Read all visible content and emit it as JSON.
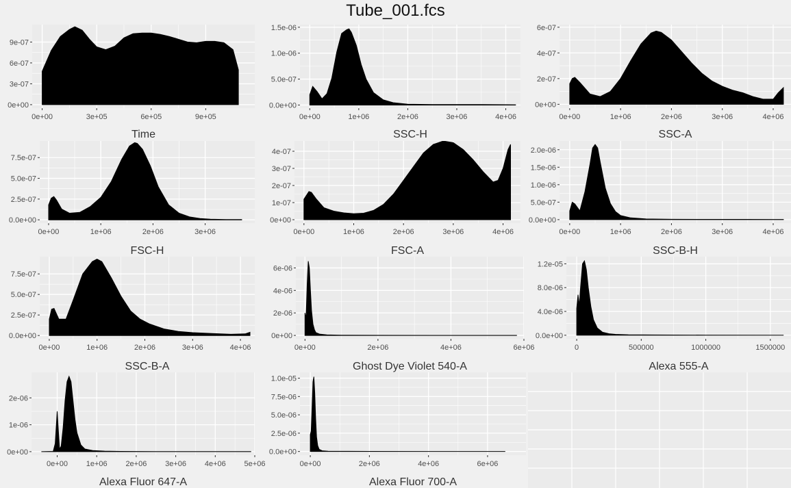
{
  "page": {
    "title": "Tube_001.fcs"
  },
  "colors": {
    "background": "#f0f0f0",
    "panel": "#ebebeb",
    "gridline": "#ffffff",
    "fill": "#000000",
    "text": "#4d4d4d"
  },
  "chart_data": [
    {
      "type": "area",
      "xlabel": "Time",
      "xticks": [
        0,
        300000,
        600000,
        900000
      ],
      "xtick_labels": [
        "0e+00",
        "3e+05",
        "6e+05",
        "9e+05"
      ],
      "yticks": [
        0,
        3e-07,
        6e-07,
        9e-07
      ],
      "ytick_labels": [
        "0e+00",
        "3e-07",
        "6e-07",
        "9e-07"
      ],
      "xlim": [
        -55000,
        1170000
      ],
      "ylim": [
        -5e-08,
        1.15e-06
      ],
      "x": [
        0,
        50000,
        100000,
        150000,
        180000,
        220000,
        260000,
        300000,
        350000,
        400000,
        450000,
        500000,
        550000,
        600000,
        650000,
        700000,
        750000,
        800000,
        850000,
        900000,
        950000,
        1000000,
        1050000,
        1080000
      ],
      "y": [
        4.8e-07,
        7.8e-07,
        9.8e-07,
        1.08e-06,
        1.12e-06,
        1.07e-06,
        9.4e-07,
        8.3e-07,
        7.9e-07,
        8.4e-07,
        9.6e-07,
        1.02e-06,
        1.03e-06,
        1.03e-06,
        1.01e-06,
        9.8e-07,
        9.4e-07,
        9e-07,
        8.9e-07,
        9.1e-07,
        9.1e-07,
        8.9e-07,
        7.9e-07,
        5e-07
      ]
    },
    {
      "type": "area",
      "xlabel": "SSC-H",
      "xticks": [
        0,
        1000000,
        2000000,
        3000000,
        4000000
      ],
      "xtick_labels": [
        "0e+00",
        "1e+06",
        "2e+06",
        "3e+06",
        "4e+06"
      ],
      "yticks": [
        0,
        5e-07,
        1e-06,
        1.5e-06
      ],
      "ytick_labels": [
        "0.0e+00",
        "5.0e-07",
        "1.0e-06",
        "1.5e-06"
      ],
      "xlim": [
        -200000,
        4300000
      ],
      "ylim": [
        -6e-08,
        1.55e-06
      ],
      "x": [
        0,
        60000,
        150000,
        250000,
        350000,
        450000,
        550000,
        650000,
        750000,
        800000,
        850000,
        950000,
        1050000,
        1150000,
        1300000,
        1500000,
        1700000,
        2000000,
        2500000,
        3000000,
        3500000,
        4000000,
        4200000
      ],
      "y": [
        2e-07,
        3.6e-07,
        2.6e-07,
        1.2e-07,
        2.2e-07,
        5.2e-07,
        1.02e-06,
        1.38e-06,
        1.45e-06,
        1.47e-06,
        1.4e-06,
        1.15e-06,
        7.8e-07,
        5e-07,
        2.4e-07,
        1e-07,
        4.5e-08,
        1.5e-08,
        1e-08,
        9e-09,
        8e-09,
        6e-09,
        5e-09
      ]
    },
    {
      "type": "area",
      "xlabel": "SSC-A",
      "xticks": [
        0,
        1000000,
        2000000,
        3000000,
        4000000
      ],
      "xtick_labels": [
        "0e+00",
        "1e+06",
        "2e+06",
        "3e+06",
        "4e+06"
      ],
      "yticks": [
        0,
        2e-07,
        4e-07,
        6e-07
      ],
      "ytick_labels": [
        "0e+00",
        "2e-07",
        "4e-07",
        "6e-07"
      ],
      "xlim": [
        -200000,
        4350000
      ],
      "ylim": [
        -3e-08,
        6.2e-07
      ],
      "x": [
        0,
        50000,
        100000,
        200000,
        400000,
        600000,
        800000,
        1000000,
        1200000,
        1400000,
        1600000,
        1700000,
        1800000,
        2000000,
        2200000,
        2400000,
        2600000,
        2800000,
        3000000,
        3200000,
        3400000,
        3600000,
        3800000,
        4000000,
        4100000,
        4200000
      ],
      "y": [
        1.6e-07,
        2e-07,
        2.1e-07,
        1.7e-07,
        8e-08,
        6e-08,
        1e-07,
        2e-07,
        3.4e-07,
        4.7e-07,
        5.55e-07,
        5.7e-07,
        5.6e-07,
        5e-07,
        4.1e-07,
        3.2e-07,
        2.4e-07,
        1.8e-07,
        1.4e-07,
        1.1e-07,
        9e-08,
        6e-08,
        4e-08,
        4e-08,
        9e-08,
        1.3e-07
      ]
    },
    {
      "type": "area",
      "xlabel": "FSC-H",
      "xticks": [
        0,
        1000000,
        2000000,
        3000000
      ],
      "xtick_labels": [
        "0e+00",
        "1e+06",
        "2e+06",
        "3e+06"
      ],
      "yticks": [
        0,
        2.5e-07,
        5e-07,
        7.5e-07
      ],
      "ytick_labels": [
        "0.0e+00",
        "2.5e-07",
        "5.0e-07",
        "7.5e-07"
      ],
      "xlim": [
        -170000,
        3950000
      ],
      "ylim": [
        -4e-08,
        9.5e-07
      ],
      "x": [
        0,
        50000,
        100000,
        150000,
        250000,
        400000,
        600000,
        800000,
        1000000,
        1200000,
        1400000,
        1550000,
        1650000,
        1700000,
        1800000,
        1950000,
        2100000,
        2300000,
        2500000,
        2700000,
        2900000,
        3100000,
        3400000,
        3700000
      ],
      "y": [
        1.8e-07,
        2.6e-07,
        2.8e-07,
        2.4e-07,
        1.3e-07,
        8e-08,
        9e-08,
        1.6e-07,
        2.7e-07,
        4.6e-07,
        7.3e-07,
        8.9e-07,
        9.3e-07,
        9.2e-07,
        8.5e-07,
        6.5e-07,
        4e-07,
        1.8e-07,
        8e-08,
        3.5e-08,
        1.5e-08,
        8e-09,
        4e-09,
        3e-09
      ]
    },
    {
      "type": "area",
      "xlabel": "FSC-A",
      "xticks": [
        0,
        1000000,
        2000000,
        3000000,
        4000000
      ],
      "xtick_labels": [
        "0e+00",
        "1e+06",
        "2e+06",
        "3e+06",
        "4e+06"
      ],
      "yticks": [
        0,
        1e-07,
        2e-07,
        3e-07,
        4e-07
      ],
      "ytick_labels": [
        "0e+00",
        "1e-07",
        "2e-07",
        "3e-07",
        "4e-07"
      ],
      "xlim": [
        -190000,
        4350000
      ],
      "ylim": [
        -2e-08,
        4.6e-07
      ],
      "x": [
        0,
        100000,
        150000,
        250000,
        400000,
        600000,
        800000,
        1000000,
        1200000,
        1400000,
        1600000,
        1800000,
        2000000,
        2200000,
        2400000,
        2600000,
        2800000,
        3000000,
        3200000,
        3400000,
        3600000,
        3800000,
        3900000,
        4000000,
        4100000,
        4150000
      ],
      "y": [
        1.2e-07,
        1.65e-07,
        1.6e-07,
        1.2e-07,
        7e-08,
        5e-08,
        4e-08,
        3.5e-08,
        3.8e-08,
        5.5e-08,
        9e-08,
        1.5e-07,
        2.3e-07,
        3.1e-07,
        3.9e-07,
        4.4e-07,
        4.6e-07,
        4.5e-07,
        4.1e-07,
        3.5e-07,
        2.8e-07,
        2.2e-07,
        2.3e-07,
        3e-07,
        4.1e-07,
        4.4e-07
      ]
    },
    {
      "type": "area",
      "xlabel": "SSC-B-H",
      "xticks": [
        0,
        1000000,
        2000000,
        3000000,
        4000000
      ],
      "xtick_labels": [
        "0e+00",
        "1e+06",
        "2e+06",
        "3e+06",
        "4e+06"
      ],
      "yticks": [
        0,
        5e-07,
        1e-06,
        1.5e-06,
        2e-06
      ],
      "ytick_labels": [
        "0.0e+00",
        "5.0e-07",
        "1.0e-06",
        "1.5e-06",
        "2.0e-06"
      ],
      "xlim": [
        -200000,
        4350000
      ],
      "ylim": [
        -1e-07,
        2.25e-06
      ],
      "x": [
        0,
        50000,
        100000,
        200000,
        300000,
        400000,
        450000,
        500000,
        550000,
        600000,
        700000,
        800000,
        900000,
        1000000,
        1200000,
        1500000,
        2000000,
        2500000,
        3000000,
        3500000,
        4000000,
        4200000
      ],
      "y": [
        2.5e-07,
        5e-07,
        4.5e-07,
        2.5e-07,
        8e-07,
        1.6e-06,
        2.05e-06,
        2.15e-06,
        2.05e-06,
        1.65e-06,
        9e-07,
        4.6e-07,
        2.3e-07,
        1.2e-07,
        5e-08,
        2e-08,
        1e-08,
        8e-09,
        8e-09,
        7e-09,
        6e-09,
        5e-09
      ]
    },
    {
      "type": "area",
      "xlabel": "SSC-B-A",
      "xticks": [
        0,
        1000000,
        2000000,
        3000000,
        4000000
      ],
      "xtick_labels": [
        "0e+00",
        "1e+06",
        "2e+06",
        "3e+06",
        "4e+06"
      ],
      "yticks": [
        0,
        2.5e-07,
        5e-07,
        7.5e-07
      ],
      "ytick_labels": [
        "0.0e+00",
        "2.5e-07",
        "5.0e-07",
        "7.5e-07"
      ],
      "xlim": [
        -200000,
        4300000
      ],
      "ylim": [
        -4e-08,
        9.6e-07
      ],
      "x": [
        0,
        50000,
        100000,
        200000,
        350000,
        500000,
        700000,
        900000,
        1000000,
        1100000,
        1300000,
        1500000,
        1700000,
        1900000,
        2100000,
        2400000,
        2700000,
        3000000,
        3400000,
        3800000,
        4100000,
        4200000
      ],
      "y": [
        2e-07,
        3.2e-07,
        3.3e-07,
        2e-07,
        2e-07,
        4.3e-07,
        7.5e-07,
        9e-07,
        9.3e-07,
        9e-07,
        7e-07,
        4.8e-07,
        3e-07,
        2e-07,
        1.4e-07,
        8e-08,
        5e-08,
        3.5e-08,
        2.5e-08,
        1.5e-08,
        2e-08,
        4e-08
      ]
    },
    {
      "type": "area",
      "xlabel": "Ghost Dye Violet 540-A",
      "xticks": [
        0,
        2000000,
        4000000,
        6000000
      ],
      "xtick_labels": [
        "0e+00",
        "2e+06",
        "4e+06",
        "6e+06"
      ],
      "yticks": [
        0,
        2e-06,
        4e-06,
        6e-06
      ],
      "ytick_labels": [
        "0e+00",
        "2e-06",
        "4e-06",
        "6e-06"
      ],
      "xlim": [
        -250000,
        6000000
      ],
      "ylim": [
        -3e-07,
        7e-06
      ],
      "x": [
        0,
        30000,
        60000,
        90000,
        120000,
        150000,
        180000,
        220000,
        260000,
        300000,
        400000,
        600000,
        1000000,
        2000000,
        4000000,
        5800000
      ],
      "y": [
        2e-06,
        1.5e-06,
        4.5e-06,
        6.6e-06,
        6e-06,
        4e-06,
        2.2e-06,
        1e-06,
        5e-07,
        2.5e-07,
        1.2e-07,
        5e-08,
        2e-08,
        1e-08,
        5e-09,
        3e-09
      ]
    },
    {
      "type": "area",
      "xlabel": "Alexa 555-A",
      "xticks": [
        0,
        500000,
        1000000,
        1500000
      ],
      "xtick_labels": [
        "0",
        "500000",
        "1000000",
        "1500000"
      ],
      "yticks": [
        0,
        4e-06,
        8e-06,
        1.2e-05
      ],
      "ytick_labels": [
        "0.0e+00",
        "4.0e-06",
        "8.0e-06",
        "1.2e-05"
      ],
      "xlim": [
        -80000,
        1660000
      ],
      "ylim": [
        -6e-07,
        1.32e-05
      ],
      "x": [
        0,
        10000,
        20000,
        30000,
        45000,
        60000,
        75000,
        90000,
        110000,
        130000,
        160000,
        200000,
        250000,
        300000,
        400000,
        600000,
        1000000,
        1600000
      ],
      "y": [
        4.5e-06,
        6.8e-06,
        5e-06,
        8e-06,
        1.2e-05,
        1.25e-05,
        1.1e-05,
        8e-06,
        4.8e-06,
        2.6e-06,
        1.2e-06,
        5e-07,
        2.5e-07,
        1.5e-07,
        8e-08,
        4e-08,
        2e-08,
        1e-08
      ]
    },
    {
      "type": "area",
      "xlabel": "Alexa Fluor 647-A",
      "xticks": [
        0,
        1000000,
        2000000,
        3000000,
        4000000,
        5000000
      ],
      "xtick_labels": [
        "0e+00",
        "1e+06",
        "2e+06",
        "3e+06",
        "4e+06",
        "5e+06"
      ],
      "yticks": [
        0,
        1e-06,
        2e-06
      ],
      "ytick_labels": [
        "0e+00",
        "1e-06",
        "2e-06"
      ],
      "xlim": [
        -650000,
        5000000
      ],
      "ylim": [
        -1.3e-07,
        2.95e-06
      ],
      "x": [
        -400000,
        -100000,
        -50000,
        0,
        30000,
        60000,
        100000,
        150000,
        200000,
        250000,
        300000,
        350000,
        400000,
        450000,
        500000,
        600000,
        700000,
        900000,
        1200000,
        1600000,
        2500000,
        3500000,
        4900000
      ],
      "y": [
        0,
        1e-08,
        3e-07,
        1.5e-06,
        8e-07,
        1e-07,
        2e-07,
        9e-07,
        1.9e-06,
        2.6e-06,
        2.8e-06,
        2.6e-06,
        1.9e-06,
        1.2e-06,
        7e-07,
        2.5e-07,
        1e-07,
        4e-08,
        2e-08,
        1e-08,
        5e-09,
        3e-09,
        2e-09
      ]
    },
    {
      "type": "area",
      "xlabel": "Alexa Fluor 700-A",
      "xticks": [
        0,
        2000000,
        4000000,
        6000000
      ],
      "xtick_labels": [
        "0e+00",
        "2e+06",
        "4e+06",
        "6e+06"
      ],
      "yticks": [
        0,
        2.5e-06,
        5e-06,
        7.5e-06,
        1e-05
      ],
      "ytick_labels": [
        "0.0e+00",
        "2.5e-06",
        "5.0e-06",
        "7.5e-06",
        "1.0e-05"
      ],
      "xlim": [
        -350000,
        7300000
      ],
      "ylim": [
        -5e-07,
        1.08e-05
      ],
      "x": [
        0,
        30000,
        60000,
        90000,
        120000,
        150000,
        180000,
        210000,
        250000,
        300000,
        400000,
        600000,
        1000000,
        2000000,
        4000000,
        6600000
      ],
      "y": [
        2.3e-06,
        2.8e-06,
        6e-06,
        9.5e-06,
        1.02e-05,
        8e-06,
        4.5e-06,
        2e-06,
        8e-07,
        3e-07,
        1e-07,
        4e-08,
        2e-08,
        1e-08,
        5e-09,
        3e-09
      ]
    }
  ]
}
